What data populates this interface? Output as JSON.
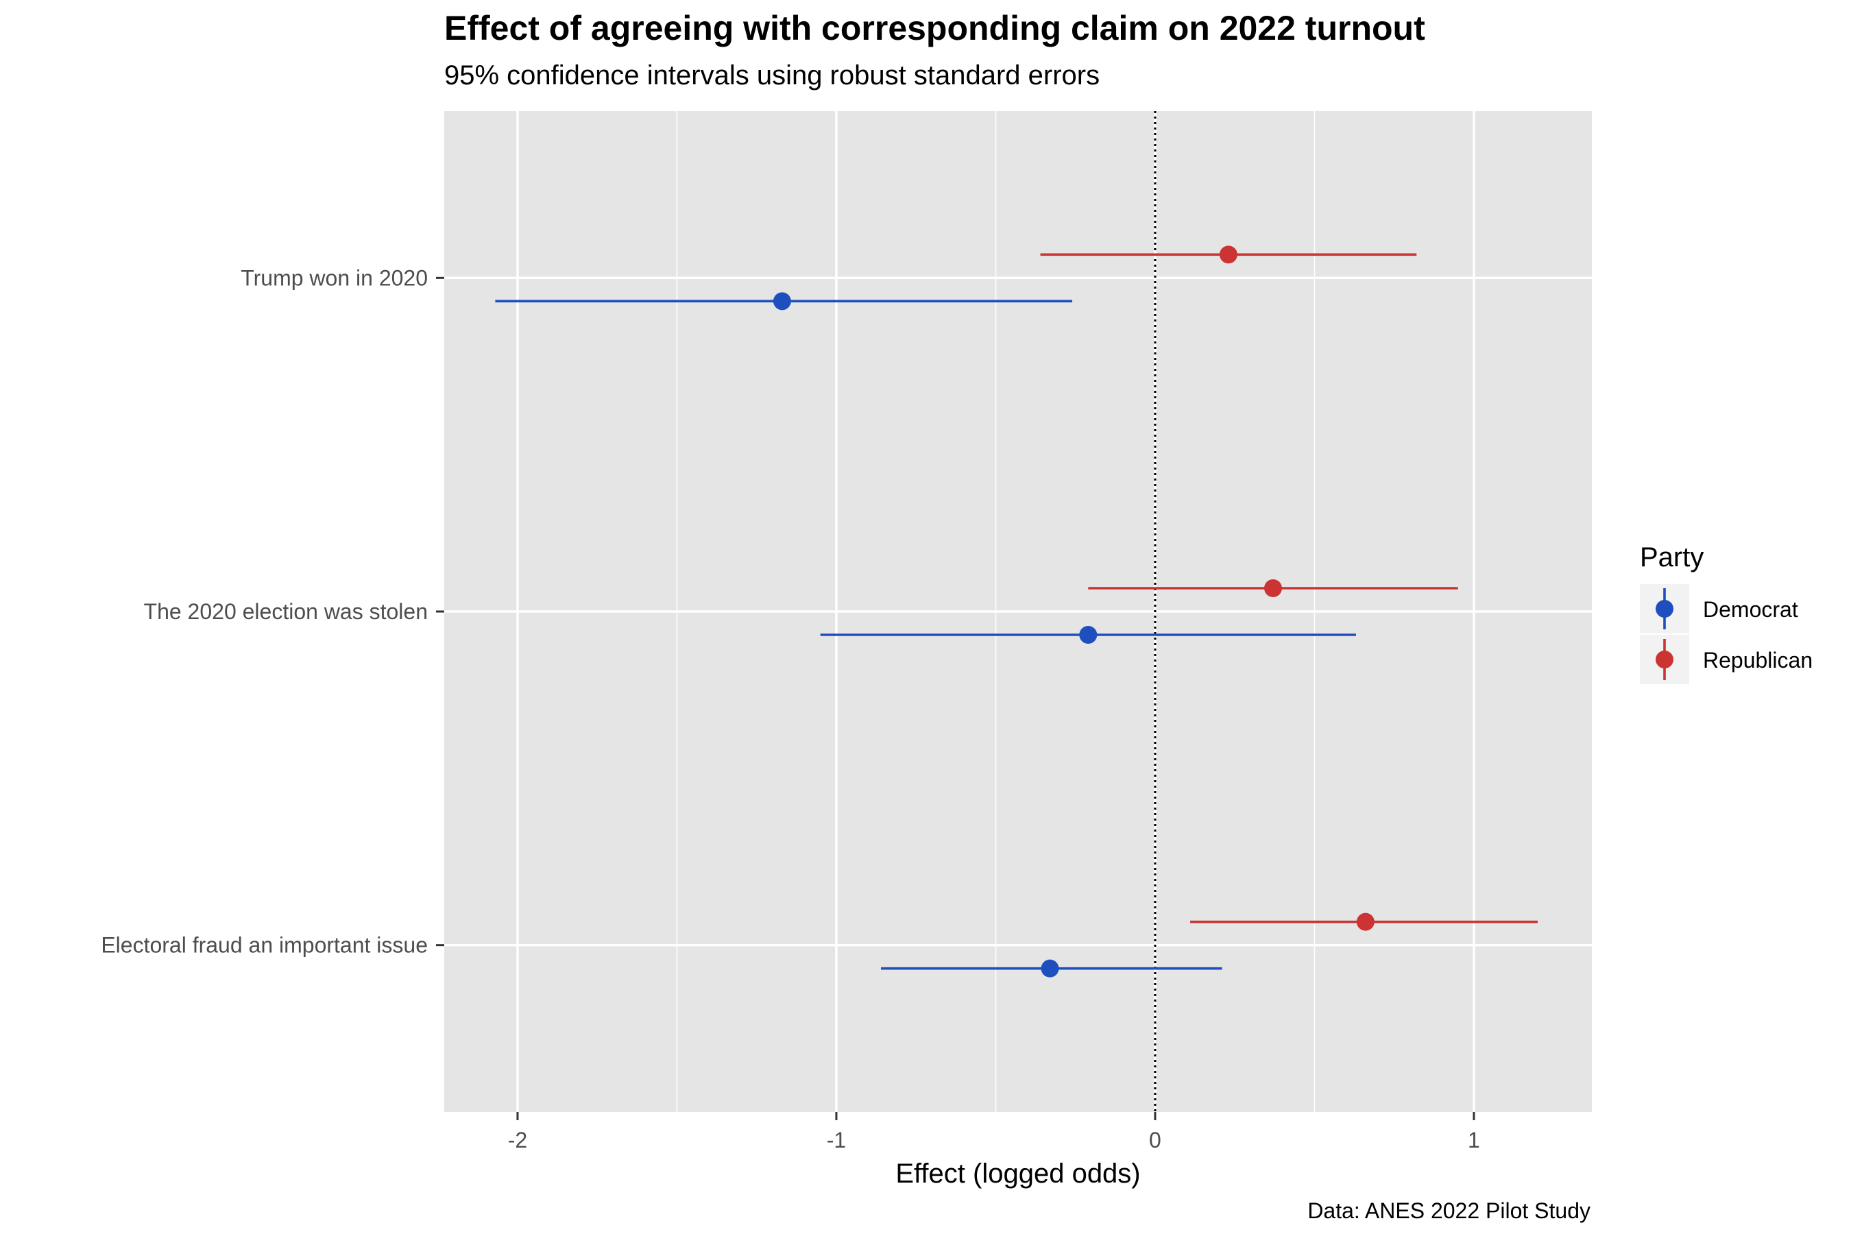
{
  "chart_data": {
    "type": "scatter",
    "title": "Effect of agreeing with corresponding claim on 2022 turnout",
    "subtitle": "95% confidence intervals using robust standard errors",
    "xlabel": "Effect (logged odds)",
    "ylabel": "",
    "caption": "Data: ANES 2022 Pilot Study",
    "xlim": [
      -2.23,
      1.37
    ],
    "x_ticks": [
      -2,
      -1,
      0,
      1
    ],
    "x_tick_labels": [
      "-2",
      "-1",
      "0",
      "1"
    ],
    "reference_line": {
      "x": 0,
      "style": "dotted"
    },
    "grid": true,
    "categories": [
      "Trump won in 2020",
      "The 2020 election was stolen",
      "Electoral fraud an important issue"
    ],
    "legend": {
      "title": "Party",
      "position": "right"
    },
    "series": [
      {
        "name": "Democrat",
        "color": "#1f4fbf",
        "points": [
          {
            "category": "Trump won in 2020",
            "estimate": -1.17,
            "low": -2.07,
            "high": -0.26
          },
          {
            "category": "The 2020 election was stolen",
            "estimate": -0.21,
            "low": -1.05,
            "high": 0.63
          },
          {
            "category": "Electoral fraud an important issue",
            "estimate": -0.33,
            "low": -0.86,
            "high": 0.21
          }
        ]
      },
      {
        "name": "Republican",
        "color": "#cc3333",
        "points": [
          {
            "category": "Trump won in 2020",
            "estimate": 0.23,
            "low": -0.36,
            "high": 0.82
          },
          {
            "category": "The 2020 election was stolen",
            "estimate": 0.37,
            "low": -0.21,
            "high": 0.95
          },
          {
            "category": "Electoral fraud an important issue",
            "estimate": 0.66,
            "low": 0.11,
            "high": 1.2
          }
        ]
      }
    ]
  }
}
